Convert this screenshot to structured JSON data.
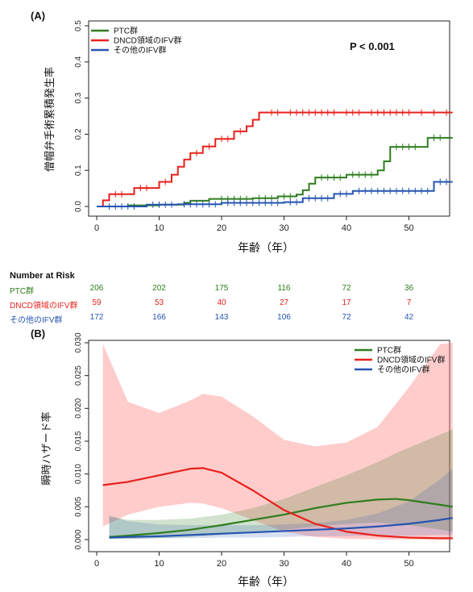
{
  "colors": {
    "ptc": "#2e7d1e",
    "dncd": "#e8211b",
    "other": "#2454b0"
  },
  "chart_data": [
    {
      "type": "line",
      "panel_label": "(A)",
      "title": "",
      "xlabel": "年齢（年）",
      "ylabel": "僧帽弁手術累積発生率",
      "xlim": [
        0,
        57
      ],
      "ylim": [
        0,
        0.5
      ],
      "x_ticks": [
        0,
        10,
        20,
        30,
        40,
        50
      ],
      "y_ticks": [
        0.0,
        0.1,
        0.2,
        0.3,
        0.4,
        0.5
      ],
      "annotation": "P < 0.001",
      "legend_position": "top-left",
      "series": [
        {
          "name": "PTC群",
          "color_key": "ptc",
          "steps": [
            [
              0,
              0
            ],
            [
              5,
              0.003
            ],
            [
              10,
              0.005
            ],
            [
              14,
              0.01
            ],
            [
              15,
              0.016
            ],
            [
              18,
              0.021
            ],
            [
              25,
              0.023
            ],
            [
              29,
              0.028
            ],
            [
              32,
              0.033
            ],
            [
              33,
              0.045
            ],
            [
              34,
              0.063
            ],
            [
              35,
              0.08
            ],
            [
              40,
              0.088
            ],
            [
              45,
              0.1
            ],
            [
              46,
              0.125
            ],
            [
              47,
              0.165
            ],
            [
              53,
              0.19
            ],
            [
              57,
              0.19
            ]
          ],
          "censor_x": [
            20,
            21,
            22,
            23,
            24,
            26,
            27,
            28,
            30,
            31,
            36,
            37,
            38,
            39,
            41,
            42,
            43,
            44,
            48,
            49,
            50,
            51,
            54,
            55
          ]
        },
        {
          "name": "DNCD領域のIFV群",
          "color_key": "dncd",
          "steps": [
            [
              0,
              0
            ],
            [
              1,
              0.017
            ],
            [
              2,
              0.034
            ],
            [
              6,
              0.051
            ],
            [
              10,
              0.068
            ],
            [
              12,
              0.088
            ],
            [
              13,
              0.11
            ],
            [
              14,
              0.13
            ],
            [
              15,
              0.148
            ],
            [
              17,
              0.166
            ],
            [
              19,
              0.187
            ],
            [
              22,
              0.208
            ],
            [
              24,
              0.222
            ],
            [
              25,
              0.24
            ],
            [
              26,
              0.26
            ],
            [
              57,
              0.26
            ]
          ],
          "censor_x": [
            3,
            4,
            7,
            8,
            11,
            16,
            18,
            20,
            21,
            23,
            28,
            29,
            31,
            32,
            33,
            34,
            35,
            36,
            37,
            38,
            40,
            41,
            42,
            44,
            45,
            46,
            47,
            48,
            49,
            50,
            52,
            54,
            56
          ]
        },
        {
          "name": "その他のIFV群",
          "color_key": "other",
          "steps": [
            [
              0,
              0
            ],
            [
              8,
              0.005
            ],
            [
              13,
              0.006
            ],
            [
              20,
              0.01
            ],
            [
              30,
              0.012
            ],
            [
              33,
              0.023
            ],
            [
              38,
              0.035
            ],
            [
              41,
              0.043
            ],
            [
              54,
              0.068
            ],
            [
              57,
              0.068
            ]
          ],
          "censor_x": [
            2,
            3,
            4,
            5,
            6,
            9,
            10,
            11,
            12,
            14,
            15,
            16,
            17,
            18,
            19,
            21,
            22,
            23,
            24,
            25,
            26,
            27,
            28,
            29,
            31,
            32,
            34,
            35,
            36,
            37,
            39,
            40,
            42,
            43,
            44,
            45,
            46,
            47,
            48,
            49,
            50,
            51,
            52,
            53,
            55,
            56
          ]
        }
      ]
    },
    {
      "type": "line",
      "panel_label": "(B)",
      "title": "",
      "xlabel": "年齢（年）",
      "ylabel": "瞬時ハザード率",
      "xlim": [
        0,
        57
      ],
      "ylim": [
        0,
        0.03
      ],
      "x_ticks": [
        0,
        10,
        20,
        30,
        40,
        50
      ],
      "y_ticks": [
        0.0,
        0.005,
        0.01,
        0.015,
        0.02,
        0.025,
        0.03
      ],
      "legend_position": "top-right",
      "series": [
        {
          "name": "PTC群",
          "color_key": "ptc",
          "x": [
            2,
            5,
            10,
            15,
            20,
            25,
            30,
            35,
            40,
            45,
            48,
            50,
            55,
            57
          ],
          "y": [
            0.0004,
            0.0006,
            0.001,
            0.0015,
            0.0022,
            0.003,
            0.0038,
            0.0048,
            0.0056,
            0.0061,
            0.0062,
            0.006,
            0.0053,
            0.005
          ],
          "upper": [
            0.0035,
            0.003,
            0.003,
            0.0032,
            0.0038,
            0.0048,
            0.0062,
            0.008,
            0.0098,
            0.0118,
            0.0132,
            0.014,
            0.016,
            0.0168
          ],
          "lower": [
            0.0001,
            0.0001,
            0.0002,
            0.0004,
            0.0007,
            0.0011,
            0.0015,
            0.002,
            0.0024,
            0.0026,
            0.0024,
            0.0022,
            0.0015,
            0.0012
          ]
        },
        {
          "name": "DNCD領域のIFV群",
          "color_key": "dncd",
          "x": [
            1,
            5,
            10,
            15,
            17,
            20,
            25,
            30,
            35,
            40,
            45,
            50,
            55,
            57
          ],
          "y": [
            0.0083,
            0.0088,
            0.0098,
            0.0108,
            0.0109,
            0.0102,
            0.0075,
            0.0045,
            0.0024,
            0.0012,
            0.0006,
            0.0003,
            0.0002,
            0.0002
          ],
          "upper": [
            0.0298,
            0.021,
            0.0193,
            0.0212,
            0.0222,
            0.0218,
            0.0188,
            0.0152,
            0.0142,
            0.0148,
            0.0172,
            0.0232,
            0.0298,
            0.03
          ],
          "lower": [
            0.002,
            0.0038,
            0.005,
            0.0056,
            0.0055,
            0.0048,
            0.003,
            0.0012,
            0.0004,
            0.0001,
            5e-05,
            2e-05,
            1e-05,
            1e-05
          ]
        },
        {
          "name": "その他のIFV群",
          "color_key": "other",
          "x": [
            2,
            5,
            10,
            15,
            20,
            25,
            30,
            35,
            40,
            45,
            50,
            55,
            57
          ],
          "y": [
            0.0003,
            0.0004,
            0.0005,
            0.0007,
            0.0009,
            0.0011,
            0.0013,
            0.0015,
            0.0017,
            0.002,
            0.0024,
            0.003,
            0.0033
          ],
          "upper": [
            0.0037,
            0.0028,
            0.0023,
            0.0022,
            0.0022,
            0.0022,
            0.0023,
            0.0025,
            0.003,
            0.004,
            0.0058,
            0.0092,
            0.0108
          ],
          "lower": [
            0.0001,
            0.0001,
            0.0002,
            0.0002,
            0.0003,
            0.0003,
            0.0004,
            0.0005,
            0.0005,
            0.0006,
            0.0006,
            0.0007,
            0.0007
          ]
        }
      ]
    }
  ],
  "risk_table": {
    "title": "Number at Risk",
    "x": [
      0,
      10,
      20,
      30,
      40,
      50
    ],
    "rows": [
      {
        "label": "PTC群",
        "color_key": "ptc",
        "values": [
          "206",
          "202",
          "175",
          "116",
          "72",
          "36"
        ]
      },
      {
        "label": "DNCD領域のIFV群",
        "color_key": "dncd",
        "values": [
          "59",
          "53",
          "40",
          "27",
          "17",
          "7"
        ]
      },
      {
        "label": "その他のIFV群",
        "color_key": "other",
        "values": [
          "172",
          "166",
          "143",
          "106",
          "72",
          "42"
        ]
      }
    ]
  }
}
